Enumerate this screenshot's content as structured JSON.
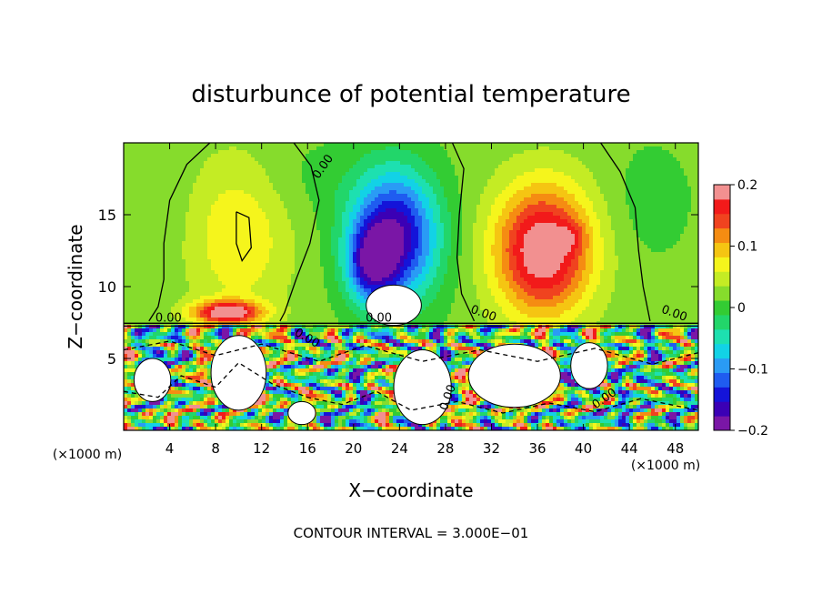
{
  "chart_data": {
    "type": "heatmap",
    "title": "disturbunce of potential temperature",
    "xlabel": "X−coordinate",
    "ylabel": "Z−coordinate",
    "x_unit": "(×1000 m)",
    "y_unit": "(×1000 m)",
    "xlim": [
      0,
      50
    ],
    "ylim": [
      0,
      20
    ],
    "x_ticks": [
      4,
      8,
      12,
      16,
      20,
      24,
      28,
      32,
      36,
      40,
      44,
      48
    ],
    "y_ticks": [
      5,
      10,
      15
    ],
    "colorbar": {
      "range": [
        -0.2,
        0.2
      ],
      "ticks": [
        {
          "value": 0.2,
          "label": "0.2"
        },
        {
          "value": 0.1,
          "label": "0.1"
        },
        {
          "value": 0,
          "label": "0"
        },
        {
          "value": -0.1,
          "label": "−0.1"
        },
        {
          "value": -0.2,
          "label": "−0.2"
        }
      ],
      "colors": [
        "#7a16a6",
        "#3b00b5",
        "#1414d9",
        "#1f5cf0",
        "#2a9bf5",
        "#12d2e6",
        "#1de0b0",
        "#22d66a",
        "#33cc33",
        "#86dc2c",
        "#c4ec24",
        "#f5f51c",
        "#f5c512",
        "#f58c12",
        "#f0431f",
        "#f21a1a",
        "#f29090"
      ]
    },
    "contour_label": "0.00",
    "contour_interval_text": "CONTOUR INTERVAL = 3.000E−01",
    "background_value": 0.02,
    "features": [
      {
        "x": 23.5,
        "z": 13.5,
        "value": -0.2,
        "sx": 3.8,
        "sz": 4.5
      },
      {
        "x": 21.5,
        "z": 11.5,
        "value": -0.12,
        "sx": 2.0,
        "sz": 2.5
      },
      {
        "x": 36.5,
        "z": 12.5,
        "value": 0.19,
        "sx": 4.2,
        "sz": 4.5
      },
      {
        "x": 39.0,
        "z": 13.5,
        "value": 0.04,
        "sx": 1.2,
        "sz": 1.0
      },
      {
        "x": 10.0,
        "z": 13.5,
        "value": 0.06,
        "sx": 4.5,
        "sz": 5.5
      },
      {
        "x": 16.0,
        "z": 17.5,
        "value": -0.015,
        "sx": 5.0,
        "sz": 3.0
      },
      {
        "x": 3.0,
        "z": 15.5,
        "value": -0.01,
        "sx": 3.0,
        "sz": 4.0
      },
      {
        "x": 9.0,
        "z": 8.2,
        "value": 0.18,
        "sx": 3.0,
        "sz": 0.8
      },
      {
        "x": 46.0,
        "z": 16.0,
        "value": -0.02,
        "sx": 3.5,
        "sz": 4.0
      }
    ],
    "white_patches": [
      {
        "x": 23.5,
        "z": 8.7,
        "rx": 2.4,
        "rz": 1.4
      },
      {
        "x": 26.0,
        "z": 3.0,
        "rx": 2.5,
        "rz": 2.6
      },
      {
        "x": 34.0,
        "z": 3.8,
        "rx": 4.0,
        "rz": 2.2
      },
      {
        "x": 10.0,
        "z": 4.0,
        "rx": 2.4,
        "rz": 2.6
      },
      {
        "x": 40.5,
        "z": 4.5,
        "rx": 1.6,
        "rz": 1.6
      },
      {
        "x": 2.5,
        "z": 3.5,
        "rx": 1.6,
        "rz": 1.5
      },
      {
        "x": 15.5,
        "z": 1.2,
        "rx": 1.2,
        "rz": 0.8
      }
    ]
  }
}
